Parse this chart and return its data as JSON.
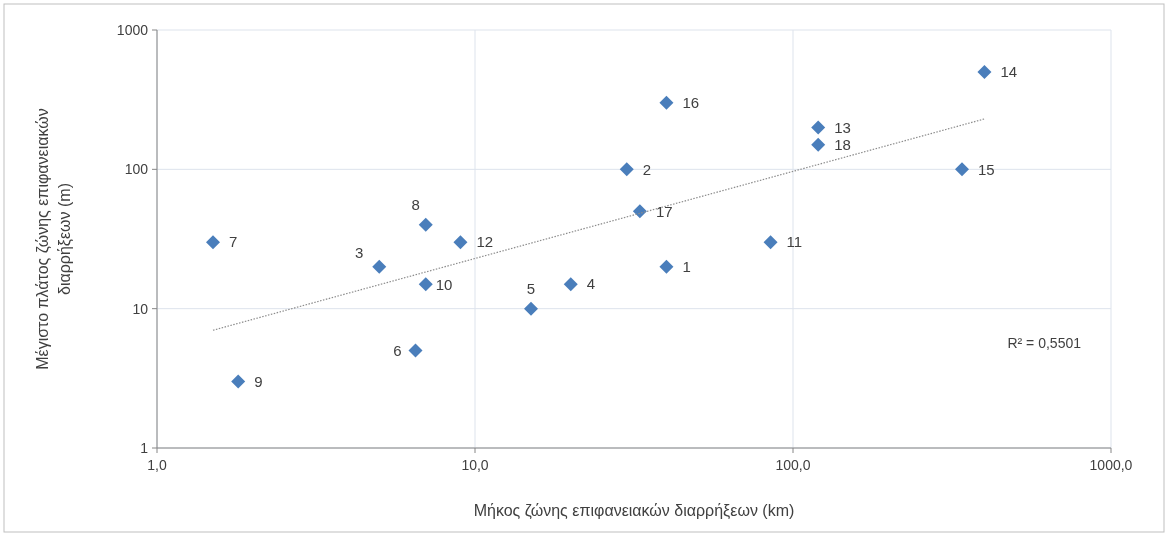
{
  "chart_data": {
    "type": "scatter",
    "xlabel": "Μήκος ζώνης επιφανειακών διαρρήξεων (km)",
    "ylabel": "Μέγιστο πλάτος ζώνης επιφανειακών διαρρήξεων (m)",
    "log": "xy",
    "grid": true,
    "xlim": [
      1,
      1000
    ],
    "xticks": [
      {
        "value": 1,
        "label": "1,0"
      },
      {
        "value": 10,
        "label": "10,0"
      },
      {
        "value": 100,
        "label": "100,0"
      },
      {
        "value": 1000,
        "label": "1000,0"
      }
    ],
    "ylim": [
      1,
      1000
    ],
    "yticks": [
      1,
      10,
      100,
      1000
    ],
    "series": [
      {
        "marker": "diamond",
        "color": "#4a7ebb",
        "x": [
          40,
          30,
          5,
          20,
          15,
          6.5,
          1.5,
          7,
          1.8,
          7,
          85,
          9,
          120,
          400,
          340,
          40,
          33,
          120
        ],
        "values": [
          20,
          100,
          20,
          15,
          10,
          5,
          30,
          40,
          3,
          15,
          30,
          30,
          200,
          500,
          100,
          300,
          50,
          150
        ]
      },
      {
        "type": "line",
        "color": "#8c8c8c",
        "line_style": "dotted",
        "x": [
          1.5,
          400
        ],
        "values": [
          7,
          230
        ]
      }
    ],
    "annotations": [
      {
        "text": "1",
        "x": 40,
        "y": 20
      },
      {
        "text": "2",
        "x": 30,
        "y": 100
      },
      {
        "text": "3",
        "x": 5,
        "y": 20
      },
      {
        "text": "4",
        "x": 20,
        "y": 15
      },
      {
        "text": "5",
        "x": 15,
        "y": 10
      },
      {
        "text": "6",
        "x": 6.5,
        "y": 5
      },
      {
        "text": "7",
        "x": 1.5,
        "y": 30
      },
      {
        "text": "8",
        "x": 7,
        "y": 40
      },
      {
        "text": "9",
        "x": 1.8,
        "y": 3
      },
      {
        "text": "10",
        "x": 7,
        "y": 15
      },
      {
        "text": "11",
        "x": 85,
        "y": 30
      },
      {
        "text": "12",
        "x": 9,
        "y": 30
      },
      {
        "text": "13",
        "x": 120,
        "y": 200
      },
      {
        "text": "14",
        "x": 400,
        "y": 500
      },
      {
        "text": "15",
        "x": 340,
        "y": 100
      },
      {
        "text": "16",
        "x": 40,
        "y": 300
      },
      {
        "text": "17",
        "x": 33,
        "y": 50
      },
      {
        "text": "18",
        "x": 120,
        "y": 150
      },
      "R² = 0,5501"
    ]
  }
}
